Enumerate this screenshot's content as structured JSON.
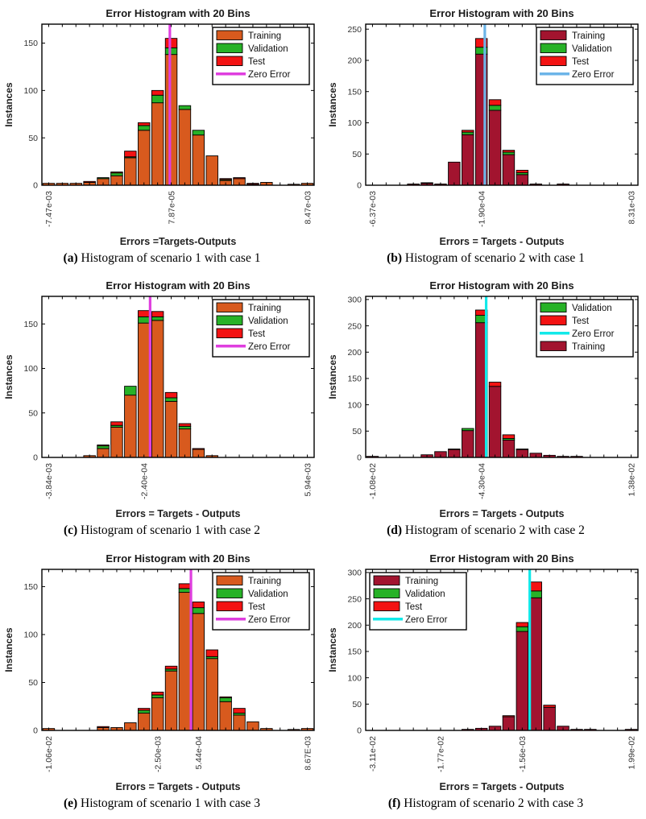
{
  "page": {
    "background": "#ffffff"
  },
  "chart_data": [
    {
      "id": "a",
      "type": "stacked-bar",
      "title": "Error Histogram with 20 Bins",
      "xlabel": "Errors =Targets-Outputs",
      "ylabel": "Instances",
      "caption_tag": "(a)",
      "caption_text": "Histogram of scenario 1 with case 1",
      "colors": {
        "training": "#D85A1E",
        "validation": "#27B227",
        "test": "#F31313",
        "zero_error": "#DF3EDF"
      },
      "legend": {
        "position": "top-right",
        "entries": [
          {
            "label": "Training",
            "series": "training",
            "swatch": "patch"
          },
          {
            "label": "Validation",
            "series": "validation",
            "swatch": "patch"
          },
          {
            "label": "Test",
            "series": "test",
            "swatch": "patch"
          },
          {
            "label": "Zero Error",
            "series": "zero_error",
            "swatch": "line"
          }
        ]
      },
      "ymax": 170,
      "yticks": [
        0,
        50,
        100,
        150
      ],
      "xticks": [
        {
          "label": "-7.47e-03",
          "pos": 0.5
        },
        {
          "label": "7.87e-05",
          "pos": 9.5
        },
        {
          "label": "8.47e-03",
          "pos": 19.5
        }
      ],
      "zero_pos": 9.4,
      "bins": {
        "training": [
          2,
          2,
          2,
          3,
          7,
          10,
          29,
          58,
          87,
          138,
          80,
          53,
          31,
          5,
          7,
          1,
          3,
          0,
          1,
          2
        ],
        "validation": [
          0,
          0,
          0,
          0,
          1,
          3,
          1,
          5,
          8,
          7,
          4,
          5,
          0,
          1,
          0,
          0,
          0,
          0,
          0,
          0
        ],
        "test": [
          0,
          0,
          0,
          1,
          0,
          1,
          6,
          3,
          5,
          10,
          0,
          0,
          0,
          1,
          1,
          1,
          0,
          0,
          0,
          0
        ]
      }
    },
    {
      "id": "b",
      "type": "stacked-bar",
      "title": "Error Histogram with 20 Bins",
      "xlabel": "Errors = Targets - Outputs",
      "ylabel": "Instances",
      "caption_tag": "(b)",
      "caption_text": "Histogram of scenario 2 with case 1",
      "colors": {
        "training": "#A2142F",
        "validation": "#27B227",
        "test": "#F31313",
        "zero_error": "#6CB5E8"
      },
      "legend": {
        "position": "top-right",
        "entries": [
          {
            "label": "Training",
            "series": "training",
            "swatch": "patch"
          },
          {
            "label": "Validation",
            "series": "validation",
            "swatch": "patch"
          },
          {
            "label": "Test",
            "series": "test",
            "swatch": "patch"
          },
          {
            "label": "Zero Error",
            "series": "zero_error",
            "swatch": "line"
          }
        ]
      },
      "ymax": 258,
      "yticks": [
        0,
        50,
        100,
        150,
        200,
        250
      ],
      "xticks": [
        {
          "label": "-6.37e-03",
          "pos": 0.5
        },
        {
          "label": "-1.90e-04",
          "pos": 8.5
        },
        {
          "label": "8.31e-03",
          "pos": 19.5
        }
      ],
      "zero_pos": 8.75,
      "bins": {
        "training": [
          0,
          0,
          0,
          2,
          3,
          2,
          37,
          81,
          210,
          120,
          49,
          17,
          2,
          0,
          2,
          0,
          0,
          0,
          0,
          0
        ],
        "validation": [
          0,
          0,
          0,
          0,
          1,
          0,
          0,
          4,
          11,
          8,
          4,
          3,
          0,
          0,
          0,
          0,
          0,
          0,
          0,
          0
        ],
        "test": [
          0,
          0,
          0,
          0,
          0,
          0,
          0,
          3,
          14,
          9,
          3,
          4,
          0,
          0,
          0,
          0,
          0,
          0,
          0,
          0
        ]
      }
    },
    {
      "id": "c",
      "type": "stacked-bar",
      "title": "Error Histogram with 20 Bins",
      "xlabel": "Errors = Targets - Outputs",
      "ylabel": "Instances",
      "caption_tag": "(c)",
      "caption_text": "Histogram of scenario 1 with case 2",
      "colors": {
        "training": "#D85A1E",
        "validation": "#27B227",
        "test": "#F31313",
        "zero_error": "#DF3EDF"
      },
      "legend": {
        "position": "top-right",
        "entries": [
          {
            "label": "Training",
            "series": "training",
            "swatch": "patch"
          },
          {
            "label": "Validation",
            "series": "validation",
            "swatch": "patch"
          },
          {
            "label": "Test",
            "series": "test",
            "swatch": "patch"
          },
          {
            "label": "Zero Error",
            "series": "zero_error",
            "swatch": "line"
          }
        ]
      },
      "ymax": 181,
      "yticks": [
        0,
        50,
        100,
        150
      ],
      "xticks": [
        {
          "label": "-3.84e-03",
          "pos": 0.5
        },
        {
          "label": "-2.40e-04",
          "pos": 7.5
        },
        {
          "label": "5.94e-03",
          "pos": 19.5
        }
      ],
      "zero_pos": 7.95,
      "bins": {
        "training": [
          0,
          0,
          0,
          2,
          10,
          34,
          70,
          151,
          154,
          63,
          32,
          9,
          2,
          0,
          0,
          0,
          0,
          0,
          0,
          0
        ],
        "validation": [
          0,
          0,
          0,
          0,
          3,
          2,
          10,
          7,
          4,
          4,
          3,
          0,
          0,
          0,
          0,
          0,
          0,
          0,
          0,
          0
        ],
        "test": [
          0,
          0,
          0,
          0,
          1,
          4,
          0,
          7,
          6,
          6,
          3,
          1,
          0,
          0,
          0,
          0,
          0,
          0,
          0,
          0
        ]
      }
    },
    {
      "id": "d",
      "type": "stacked-bar",
      "title": "Error Histogram with 20 Bins",
      "xlabel": "Errors = Targets - Outputs",
      "ylabel": "Instances",
      "caption_tag": "(d)",
      "caption_text": "Histogram of scenario 2 with case 2",
      "colors": {
        "training": "#A2142F",
        "validation": "#27B227",
        "test": "#F31313",
        "zero_error": "#12E9E9"
      },
      "legend": {
        "position": "top-right",
        "entries": [
          {
            "label": "Validation",
            "series": "validation",
            "swatch": "patch"
          },
          {
            "label": "Test",
            "series": "test",
            "swatch": "patch"
          },
          {
            "label": "Zero Error",
            "series": "zero_error",
            "swatch": "line"
          },
          {
            "label": "Training",
            "series": "training",
            "swatch": "patch"
          }
        ]
      },
      "ymax": 306,
      "yticks": [
        0,
        50,
        100,
        150,
        200,
        250,
        300
      ],
      "xticks": [
        {
          "label": "-1.08e-02",
          "pos": 0.5
        },
        {
          "label": "-4.30e-04",
          "pos": 8.5
        },
        {
          "label": "1.38e-02",
          "pos": 19.5
        }
      ],
      "zero_pos": 8.85,
      "bins": {
        "training": [
          2,
          0,
          0,
          0,
          5,
          11,
          15,
          51,
          256,
          135,
          33,
          15,
          8,
          4,
          2,
          2,
          0,
          0,
          0,
          0
        ],
        "validation": [
          0,
          0,
          0,
          0,
          0,
          0,
          0,
          4,
          14,
          0,
          3,
          0,
          0,
          0,
          0,
          0,
          0,
          0,
          0,
          0
        ],
        "test": [
          0,
          0,
          0,
          0,
          0,
          0,
          1,
          0,
          10,
          8,
          7,
          1,
          0,
          0,
          0,
          0,
          0,
          0,
          0,
          0
        ]
      }
    },
    {
      "id": "e",
      "type": "stacked-bar",
      "title": "Error Histogram with 20 Bins",
      "xlabel": "Errors = Targets - Outputs",
      "ylabel": "Instances",
      "caption_tag": "(e)",
      "caption_text": "Histogram of scenario 1 with case 3",
      "colors": {
        "training": "#D85A1E",
        "validation": "#27B227",
        "test": "#F31313",
        "zero_error": "#DF3EDF"
      },
      "legend": {
        "position": "top-right",
        "entries": [
          {
            "label": "Training",
            "series": "training",
            "swatch": "patch"
          },
          {
            "label": "Validation",
            "series": "validation",
            "swatch": "patch"
          },
          {
            "label": "Test",
            "series": "test",
            "swatch": "patch"
          },
          {
            "label": "Zero Error",
            "series": "zero_error",
            "swatch": "line"
          }
        ]
      },
      "ymax": 168,
      "yticks": [
        0,
        50,
        100,
        150
      ],
      "xticks": [
        {
          "label": "-1.06e-02",
          "pos": 0.5
        },
        {
          "label": "-2.50e-03",
          "pos": 8.5
        },
        {
          "label": "5.44e-04",
          "pos": 11.5
        },
        {
          "label": "8.67E-03",
          "pos": 19.5
        }
      ],
      "zero_pos": 10.95,
      "bins": {
        "training": [
          2,
          0,
          0,
          0,
          3,
          3,
          8,
          18,
          34,
          62,
          144,
          122,
          75,
          30,
          16,
          9,
          2,
          0,
          1,
          2
        ],
        "validation": [
          0,
          0,
          0,
          0,
          0,
          0,
          0,
          3,
          3,
          2,
          4,
          6,
          2,
          4,
          2,
          0,
          0,
          0,
          0,
          0
        ],
        "test": [
          0,
          0,
          0,
          0,
          1,
          0,
          0,
          2,
          3,
          3,
          5,
          6,
          7,
          1,
          5,
          0,
          0,
          0,
          0,
          0
        ]
      }
    },
    {
      "id": "f",
      "type": "stacked-bar",
      "title": "Error Histogram with 20 Bins",
      "xlabel": "Errors = Targets - Outputs",
      "ylabel": "Instances",
      "caption_tag": "(f)",
      "caption_text": "Histogram of scenario 2 with case 3",
      "colors": {
        "training": "#A2142F",
        "validation": "#27B227",
        "test": "#F31313",
        "zero_error": "#12E9E9"
      },
      "legend": {
        "position": "top-left",
        "entries": [
          {
            "label": "Training",
            "series": "training",
            "swatch": "patch"
          },
          {
            "label": "Validation",
            "series": "validation",
            "swatch": "patch"
          },
          {
            "label": "Test",
            "series": "test",
            "swatch": "patch"
          },
          {
            "label": "Zero Error",
            "series": "zero_error",
            "swatch": "line"
          }
        ]
      },
      "ymax": 306,
      "yticks": [
        0,
        50,
        100,
        150,
        200,
        250,
        300
      ],
      "xticks": [
        {
          "label": "-3.11e-02",
          "pos": 0.5
        },
        {
          "label": "-1.77e-02",
          "pos": 5.5
        },
        {
          "label": "-1.56e-03",
          "pos": 11.5
        },
        {
          "label": "1.99e-02",
          "pos": 19.5
        }
      ],
      "zero_pos": 12.05,
      "bins": {
        "training": [
          0,
          0,
          0,
          0,
          0,
          0,
          0,
          2,
          4,
          8,
          26,
          188,
          252,
          44,
          8,
          2,
          2,
          0,
          0,
          2
        ],
        "validation": [
          0,
          0,
          0,
          0,
          0,
          0,
          0,
          0,
          0,
          0,
          0,
          9,
          13,
          0,
          0,
          0,
          0,
          0,
          0,
          0
        ],
        "test": [
          0,
          0,
          0,
          0,
          0,
          0,
          0,
          0,
          0,
          0,
          2,
          8,
          17,
          4,
          0,
          0,
          0,
          0,
          0,
          0
        ]
      }
    }
  ]
}
